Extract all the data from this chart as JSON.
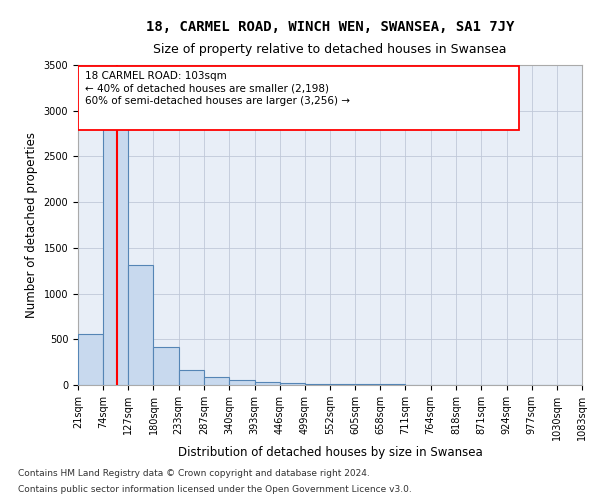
{
  "title": "18, CARMEL ROAD, WINCH WEN, SWANSEA, SA1 7JY",
  "subtitle": "Size of property relative to detached houses in Swansea",
  "xlabel": "Distribution of detached houses by size in Swansea",
  "ylabel": "Number of detached properties",
  "footnote1": "Contains HM Land Registry data © Crown copyright and database right 2024.",
  "footnote2": "Contains public sector information licensed under the Open Government Licence v3.0.",
  "bin_edges": [
    21,
    74,
    127,
    180,
    233,
    287,
    340,
    393,
    446,
    499,
    552,
    605,
    658,
    711,
    764,
    818,
    871,
    924,
    977,
    1030,
    1083
  ],
  "bar_heights": [
    560,
    3000,
    1310,
    420,
    160,
    90,
    55,
    35,
    25,
    15,
    10,
    8,
    6,
    5,
    4,
    3,
    3,
    2,
    2,
    1
  ],
  "bar_color": "#c8d9ee",
  "bar_edge_color": "#5585b5",
  "red_line_x": 103,
  "annotation_title": "18 CARMEL ROAD: 103sqm",
  "annotation_line1": "← 40% of detached houses are smaller (2,198)",
  "annotation_line2": "60% of semi-detached houses are larger (3,256) →",
  "ylim": [
    0,
    3500
  ],
  "yticks": [
    0,
    500,
    1000,
    1500,
    2000,
    2500,
    3000,
    3500
  ],
  "background_color": "#ffffff",
  "grid_color": "#c0c8d8",
  "title_fontsize": 10,
  "subtitle_fontsize": 9,
  "label_fontsize": 8.5,
  "tick_fontsize": 7,
  "footnote_fontsize": 6.5
}
